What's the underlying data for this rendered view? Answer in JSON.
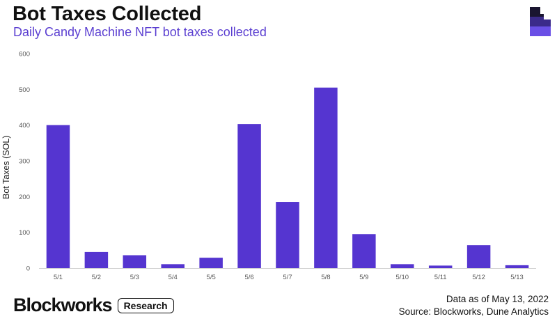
{
  "header": {
    "title": "Bot Taxes Collected",
    "subtitle": "Daily Candy Machine NFT bot taxes collected"
  },
  "colors": {
    "bar": "#5535d0",
    "accent": "#5b3fd1",
    "axis_text": "#555555"
  },
  "footer": {
    "note_line1": "Data as of May 13, 2022",
    "note_line2": "Source: Blockworks, Dune Analytics",
    "brand_name": "Blockworks",
    "brand_tag": "Research",
    "logo_icon": "blockworks-logo-icon"
  },
  "chart_data": {
    "type": "bar",
    "title": "Bot Taxes Collected",
    "subtitle": "Daily Candy Machine NFT bot taxes collected",
    "xlabel": "",
    "ylabel": "Bot Taxes (SOL)",
    "categories": [
      "5/1",
      "5/2",
      "5/3",
      "5/4",
      "5/5",
      "5/6",
      "5/7",
      "5/8",
      "5/9",
      "5/10",
      "5/11",
      "5/12",
      "5/13"
    ],
    "values": [
      400,
      45,
      36,
      11,
      29,
      403,
      185,
      505,
      95,
      11,
      7,
      64,
      8
    ],
    "ylim": [
      0,
      600
    ],
    "yticks": [
      0,
      100,
      200,
      300,
      400,
      500,
      600
    ],
    "grid": false,
    "legend": "none"
  }
}
